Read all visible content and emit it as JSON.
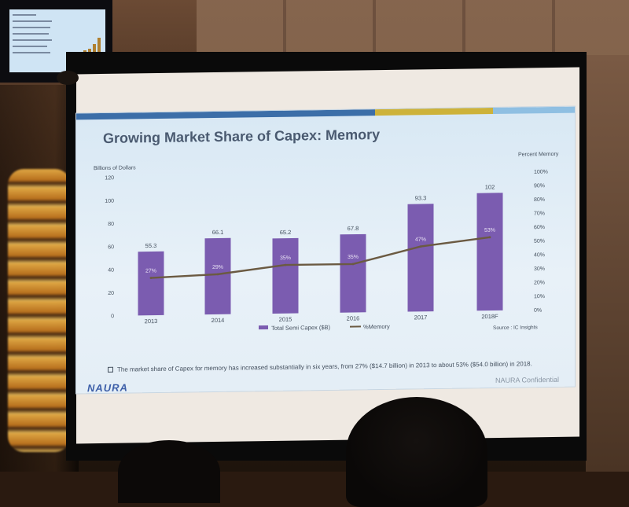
{
  "slide": {
    "title": "Growing Market Share of Capex: Memory",
    "bullet": "The market share of Capex for memory has increased substantially in six years, from 27% ($14.7 billion) in 2013 to about 53% ($54.0 billion) in 2018.",
    "logo": "NAURA",
    "confidential": "NAURA Confidential",
    "source": "Source : IC Insights",
    "colors": {
      "bar": "#7b5cb0",
      "line": "#6b5a42",
      "title": "#4a5a70",
      "accent_bar": [
        "#3c6ea8",
        "#cdb23a",
        "#8fbfe2"
      ]
    }
  },
  "chart_data": {
    "type": "bar",
    "title": "",
    "categories": [
      "2013",
      "2014",
      "2015",
      "2016",
      "2017",
      "2018F"
    ],
    "series": [
      {
        "name": "Total Semi Capex ($B)",
        "type": "bar",
        "axis": "left",
        "values": [
          55.3,
          66.1,
          65.2,
          67.8,
          93.3,
          102
        ],
        "value_labels": [
          "55.3",
          "66.1",
          "65.2",
          "67.8",
          "93.3",
          "102"
        ]
      },
      {
        "name": "%Memory",
        "type": "line",
        "axis": "right",
        "values": [
          27,
          29,
          35,
          35,
          47,
          53
        ],
        "value_labels": [
          "27%",
          "29%",
          "35%",
          "35%",
          "47%",
          "53%"
        ]
      }
    ],
    "ylabel": "Billions of Dollars",
    "ylim": [
      0,
      120
    ],
    "yticks": [
      "0",
      "20",
      "40",
      "60",
      "80",
      "100",
      "120"
    ],
    "y2label": "Percent Memory",
    "y2lim": [
      0,
      100
    ],
    "y2ticks": [
      "0%",
      "10%",
      "20%",
      "30%",
      "40%",
      "50%",
      "60%",
      "70%",
      "80%",
      "90%",
      "100%"
    ],
    "legend": [
      "Total Semi Capex ($B)",
      "%Memory"
    ],
    "legend_position": "bottom",
    "grid": false
  }
}
